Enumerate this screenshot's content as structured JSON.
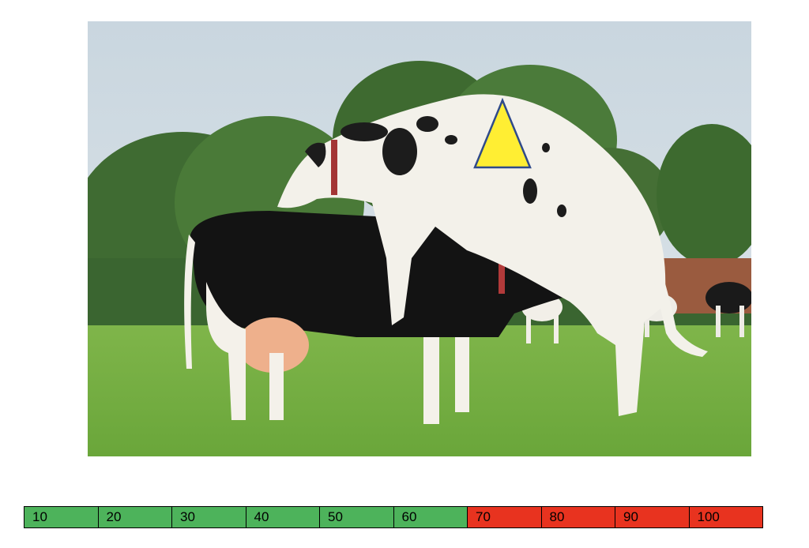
{
  "photo": {
    "subject": "two Holstein cows in a grassy pasture, one mounting the other",
    "marker_icon": "yellow-triangle",
    "marker_color": "#ffee33"
  },
  "scale": {
    "cells": [
      {
        "label": "10",
        "color": "#4db35b"
      },
      {
        "label": "20",
        "color": "#4db35b"
      },
      {
        "label": "30",
        "color": "#4db35b"
      },
      {
        "label": "40",
        "color": "#4db35b"
      },
      {
        "label": "50",
        "color": "#4db35b"
      },
      {
        "label": "60",
        "color": "#4db35b"
      },
      {
        "label": "70",
        "color": "#e8331f"
      },
      {
        "label": "80",
        "color": "#e8331f"
      },
      {
        "label": "90",
        "color": "#e8331f"
      },
      {
        "label": "100",
        "color": "#e8331f"
      }
    ]
  }
}
